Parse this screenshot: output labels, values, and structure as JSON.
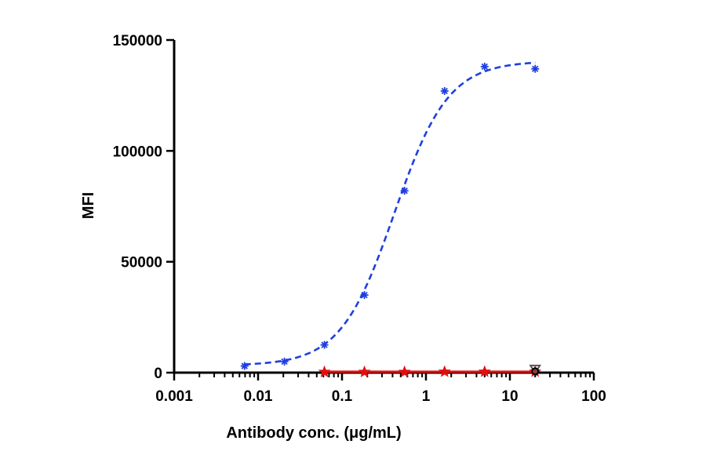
{
  "chart_data": {
    "type": "scatter",
    "title": "",
    "xlabel": "Antibody conc. (μg/mL)",
    "ylabel": "MFI",
    "x_scale": "log",
    "xlim": [
      0.001,
      100
    ],
    "ylim": [
      0,
      150000
    ],
    "x_ticks": [
      0.001,
      0.01,
      0.1,
      1,
      10,
      100
    ],
    "x_tick_labels": [
      "0.001",
      "0.01",
      "0.1",
      "1",
      "10",
      "100"
    ],
    "y_ticks": [
      0,
      50000,
      100000,
      150000
    ],
    "y_tick_labels": [
      "0",
      "50000",
      "100000",
      "150000"
    ],
    "grid": false,
    "legend": "none",
    "series": [
      {
        "color": "#1f3fe0",
        "marker": "asterisk",
        "fit_line": "dashed",
        "x": [
          0.0069,
          0.0206,
          0.0617,
          0.185,
          0.556,
          1.667,
          5.0,
          20.0
        ],
        "y": [
          3000,
          5000,
          12500,
          35000,
          82000,
          127000,
          138000,
          137000
        ]
      },
      {
        "color": "#e01010",
        "marker": "star",
        "fit_line": "solid",
        "x": [
          0.0617,
          0.185,
          0.556,
          1.667,
          5.0,
          20.0
        ],
        "y": [
          300,
          300,
          300,
          400,
          400,
          400
        ]
      },
      {
        "color": "#555555",
        "marker": "triangle-down",
        "fit_line": "none",
        "x": [
          20.0
        ],
        "y": [
          1800
        ]
      },
      {
        "color": "#000000",
        "marker": "circle",
        "fit_line": "none",
        "x": [
          20.0
        ],
        "y": [
          600
        ]
      }
    ]
  }
}
